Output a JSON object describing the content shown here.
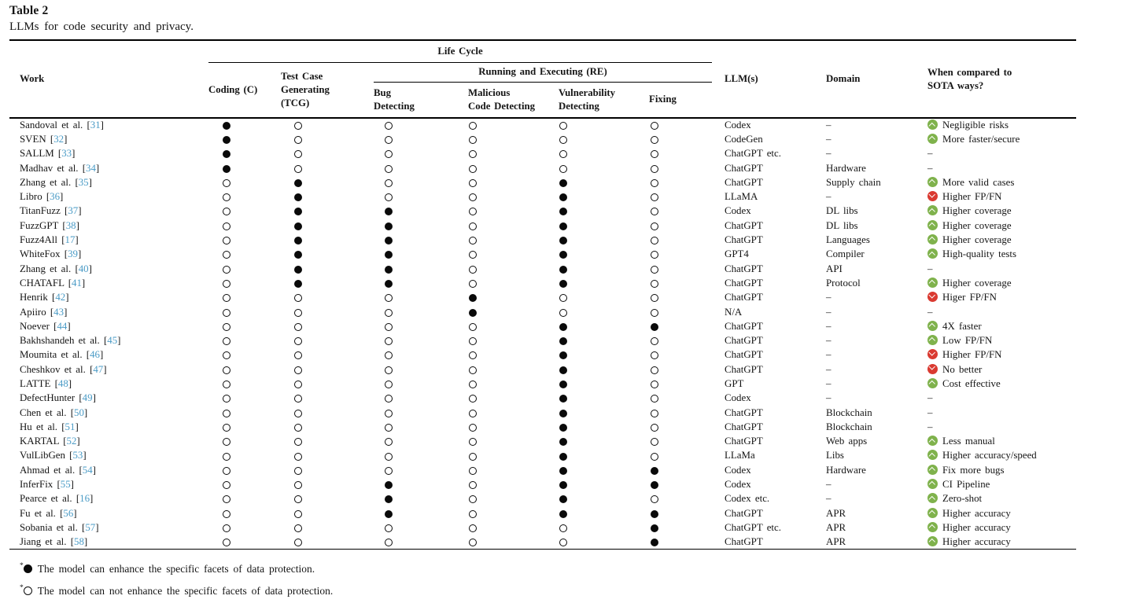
{
  "table": {
    "label": "Table 2",
    "caption": "LLMs for code security and privacy.",
    "colors": {
      "reference_blue": "#4a9bc6",
      "improvement_green": "#7fb24c",
      "decline_red": "#da3a31"
    },
    "header": {
      "work": "Work",
      "life_cycle": "Life Cycle",
      "coding": "Coding (C)",
      "tcg_lines": [
        "Test Case",
        "Generating",
        "(TCG)"
      ],
      "running_executing": "Running and Executing (RE)",
      "bug_lines": [
        "Bug",
        "Detecting"
      ],
      "malicious_lines": [
        "Malicious",
        "Code Detecting"
      ],
      "vulnerability_lines": [
        "Vulnerability",
        "Detecting"
      ],
      "fixing_lines": [
        "Fixing"
      ],
      "llms": "LLM(s)",
      "domain": "Domain",
      "sota_lines": [
        "When compared to",
        "SOTA ways?"
      ]
    },
    "rows": [
      {
        "work": "Sandoval et al.",
        "ref": "31",
        "marks": [
          1,
          0,
          0,
          0,
          0,
          0
        ],
        "llm": "Codex",
        "domain": "–",
        "dir": "up",
        "sota": "Negligible risks"
      },
      {
        "work": "SVEN",
        "ref": "32",
        "marks": [
          1,
          0,
          0,
          0,
          0,
          0
        ],
        "llm": "CodeGen",
        "domain": "–",
        "dir": "up",
        "sota": "More faster/secure"
      },
      {
        "work": "SALLM",
        "ref": "33",
        "marks": [
          1,
          0,
          0,
          0,
          0,
          0
        ],
        "llm": "ChatGPT etc.",
        "domain": "–",
        "dir": null,
        "sota": "–"
      },
      {
        "work": "Madhav et al.",
        "ref": "34",
        "marks": [
          1,
          0,
          0,
          0,
          0,
          0
        ],
        "llm": "ChatGPT",
        "domain": "Hardware",
        "dir": null,
        "sota": "–"
      },
      {
        "work": "Zhang et al.",
        "ref": "35",
        "marks": [
          0,
          1,
          0,
          0,
          1,
          0
        ],
        "llm": "ChatGPT",
        "domain": "Supply chain",
        "dir": "up",
        "sota": "More valid cases"
      },
      {
        "work": "Libro",
        "ref": "36",
        "marks": [
          0,
          1,
          0,
          0,
          1,
          0
        ],
        "llm": "LLaMA",
        "domain": "–",
        "dir": "down",
        "sota": "Higher FP/FN"
      },
      {
        "work": "TitanFuzz",
        "ref": "37",
        "marks": [
          0,
          1,
          1,
          0,
          1,
          0
        ],
        "llm": "Codex",
        "domain": "DL libs",
        "dir": "up",
        "sota": "Higher coverage"
      },
      {
        "work": "FuzzGPT",
        "ref": "38",
        "marks": [
          0,
          1,
          1,
          0,
          1,
          0
        ],
        "llm": "ChatGPT",
        "domain": "DL libs",
        "dir": "up",
        "sota": "Higher coverage"
      },
      {
        "work": "Fuzz4All",
        "ref": "17",
        "marks": [
          0,
          1,
          1,
          0,
          1,
          0
        ],
        "llm": "ChatGPT",
        "domain": "Languages",
        "dir": "up",
        "sota": "Higher coverage"
      },
      {
        "work": "WhiteFox",
        "ref": "39",
        "marks": [
          0,
          1,
          1,
          0,
          1,
          0
        ],
        "llm": "GPT4",
        "domain": "Compiler",
        "dir": "up",
        "sota": "High-quality tests"
      },
      {
        "work": "Zhang et al.",
        "ref": "40",
        "marks": [
          0,
          1,
          1,
          0,
          1,
          0
        ],
        "llm": "ChatGPT",
        "domain": "API",
        "dir": null,
        "sota": "–"
      },
      {
        "work": "CHATAFL",
        "ref": "41",
        "marks": [
          0,
          1,
          1,
          0,
          1,
          0
        ],
        "llm": "ChatGPT",
        "domain": "Protocol",
        "dir": "up",
        "sota": "Higher coverage"
      },
      {
        "work": "Henrik",
        "ref": "42",
        "marks": [
          0,
          0,
          0,
          1,
          0,
          0
        ],
        "llm": "ChatGPT",
        "domain": "–",
        "dir": "down",
        "sota": "Higer FP/FN"
      },
      {
        "work": "Apiiro",
        "ref": "43",
        "marks": [
          0,
          0,
          0,
          1,
          0,
          0
        ],
        "llm": "N/A",
        "domain": "–",
        "dir": null,
        "sota": "–"
      },
      {
        "work": "Noever",
        "ref": "44",
        "marks": [
          0,
          0,
          0,
          0,
          1,
          1
        ],
        "llm": "ChatGPT",
        "domain": "–",
        "dir": "up",
        "sota": "4X faster"
      },
      {
        "work": "Bakhshandeh et al.",
        "ref": "45",
        "marks": [
          0,
          0,
          0,
          0,
          1,
          0
        ],
        "llm": "ChatGPT",
        "domain": "–",
        "dir": "up",
        "sota": "Low FP/FN"
      },
      {
        "work": "Moumita et al.",
        "ref": "46",
        "marks": [
          0,
          0,
          0,
          0,
          1,
          0
        ],
        "llm": "ChatGPT",
        "domain": "–",
        "dir": "down",
        "sota": "Higher FP/FN"
      },
      {
        "work": "Cheshkov et al.",
        "ref": "47",
        "marks": [
          0,
          0,
          0,
          0,
          1,
          0
        ],
        "llm": "ChatGPT",
        "domain": "–",
        "dir": "down",
        "sota": "No better"
      },
      {
        "work": "LATTE",
        "ref": "48",
        "marks": [
          0,
          0,
          0,
          0,
          1,
          0
        ],
        "llm": "GPT",
        "domain": "–",
        "dir": "up",
        "sota": "Cost effective"
      },
      {
        "work": "DefectHunter",
        "ref": "49",
        "marks": [
          0,
          0,
          0,
          0,
          1,
          0
        ],
        "llm": "Codex",
        "domain": "–",
        "dir": null,
        "sota": "–"
      },
      {
        "work": "Chen et al.",
        "ref": "50",
        "marks": [
          0,
          0,
          0,
          0,
          1,
          0
        ],
        "llm": "ChatGPT",
        "domain": "Blockchain",
        "dir": null,
        "sota": "–"
      },
      {
        "work": "Hu et al.",
        "ref": "51",
        "marks": [
          0,
          0,
          0,
          0,
          1,
          0
        ],
        "llm": "ChatGPT",
        "domain": "Blockchain",
        "dir": null,
        "sota": "–"
      },
      {
        "work": "KARTAL",
        "ref": "52",
        "marks": [
          0,
          0,
          0,
          0,
          1,
          0
        ],
        "llm": "ChatGPT",
        "domain": "Web apps",
        "dir": "up",
        "sota": "Less manual"
      },
      {
        "work": "VulLibGen",
        "ref": "53",
        "marks": [
          0,
          0,
          0,
          0,
          1,
          0
        ],
        "llm": "LLaMa",
        "domain": "Libs",
        "dir": "up",
        "sota": "Higher accuracy/speed"
      },
      {
        "work": "Ahmad et al.",
        "ref": "54",
        "marks": [
          0,
          0,
          0,
          0,
          1,
          1
        ],
        "llm": "Codex",
        "domain": "Hardware",
        "dir": "up",
        "sota": "Fix more bugs"
      },
      {
        "work": "InferFix",
        "ref": "55",
        "marks": [
          0,
          0,
          1,
          0,
          1,
          1
        ],
        "llm": "Codex",
        "domain": "–",
        "dir": "up",
        "sota": "CI Pipeline"
      },
      {
        "work": "Pearce et al.",
        "ref": "16",
        "marks": [
          0,
          0,
          1,
          0,
          1,
          0
        ],
        "llm": "Codex etc.",
        "domain": "–",
        "dir": "up",
        "sota": "Zero-shot"
      },
      {
        "work": "Fu et al.",
        "ref": "56",
        "marks": [
          0,
          0,
          1,
          0,
          1,
          1
        ],
        "llm": "ChatGPT",
        "domain": "APR",
        "dir": "up",
        "sota": "Higher accuracy"
      },
      {
        "work": "Sobania et al.",
        "ref": "57",
        "marks": [
          0,
          0,
          0,
          0,
          0,
          1
        ],
        "llm": "ChatGPT etc.",
        "domain": "APR",
        "dir": "up",
        "sota": "Higher accuracy"
      },
      {
        "work": "Jiang et al.",
        "ref": "58",
        "marks": [
          0,
          0,
          0,
          0,
          0,
          1
        ],
        "llm": "ChatGPT",
        "domain": "APR",
        "dir": "up",
        "sota": "Higher accuracy"
      }
    ],
    "footnotes": [
      {
        "marker": "*",
        "symbol": "filled-circle",
        "text": "The model can enhance the specific facets of data protection."
      },
      {
        "marker": "*",
        "symbol": "open-circle",
        "text": "The model can not enhance the specific facets of data protection."
      }
    ]
  }
}
